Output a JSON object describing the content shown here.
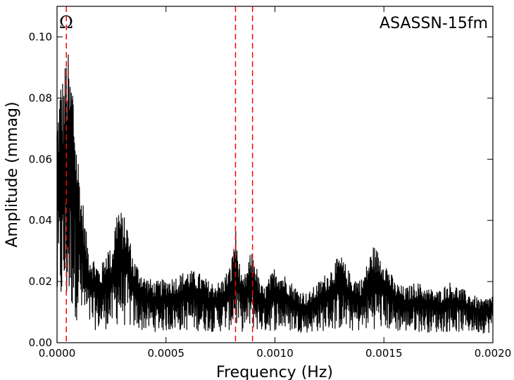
{
  "chart_data": {
    "type": "line",
    "title": "",
    "xlabel": "Frequency (Hz)",
    "ylabel": "Amplitude (mmag)",
    "annotation": "ASASSN-15fm",
    "marker_label": "Ω",
    "xlim": [
      0.0,
      0.002
    ],
    "ylim": [
      0.0,
      0.11
    ],
    "x_ticks": [
      0.0,
      0.0005,
      0.001,
      0.0015,
      0.002
    ],
    "x_tick_labels": [
      "0.0000",
      "0.0005",
      "0.0010",
      "0.0015",
      "0.0020"
    ],
    "y_ticks": [
      0.0,
      0.02,
      0.04,
      0.06,
      0.08,
      0.1
    ],
    "y_tick_labels": [
      "0.00",
      "0.02",
      "0.04",
      "0.06",
      "0.08",
      "0.10"
    ],
    "grid": false,
    "vertical_lines": [
      {
        "x": 4.27e-05,
        "color": "#ff0000",
        "style": "dashed"
      },
      {
        "x": 0.000819,
        "color": "#ff0000",
        "style": "dashed"
      },
      {
        "x": 0.000897,
        "color": "#ff0000",
        "style": "dashed"
      }
    ],
    "series": [
      {
        "color": "#000000",
        "envelope": {
          "x": [
            0.0,
            1e-05,
            2e-05,
            3e-05,
            4e-05,
            5e-05,
            6e-05,
            7e-05,
            8e-05,
            9e-05,
            0.0001,
            0.00011,
            0.00012,
            0.00013,
            0.00014,
            0.00015,
            0.00017,
            0.0002,
            0.00023,
            0.00025,
            0.00027,
            0.00028,
            0.0003,
            0.00032,
            0.00035,
            0.0004,
            0.00045,
            0.0005,
            0.00055,
            0.0006,
            0.00065,
            0.0007,
            0.00075,
            0.0008,
            0.00081,
            0.00082,
            0.00083,
            0.00085,
            0.00087,
            0.00089,
            0.0009,
            0.00091,
            0.00093,
            0.00095,
            0.001,
            0.00105,
            0.0011,
            0.00115,
            0.0012,
            0.00125,
            0.0013,
            0.00135,
            0.0014,
            0.00145,
            0.0015,
            0.00155,
            0.0016,
            0.00165,
            0.0017,
            0.00175,
            0.0018,
            0.00185,
            0.0019,
            0.00195,
            0.002
          ],
          "y": [
            0.075,
            0.082,
            0.09,
            0.086,
            0.094,
            0.096,
            0.088,
            0.09,
            0.078,
            0.066,
            0.06,
            0.05,
            0.046,
            0.038,
            0.034,
            0.03,
            0.028,
            0.024,
            0.032,
            0.03,
            0.042,
            0.046,
            0.042,
            0.04,
            0.028,
            0.022,
            0.02,
            0.021,
            0.022,
            0.024,
            0.023,
            0.02,
            0.02,
            0.026,
            0.034,
            0.037,
            0.03,
            0.02,
            0.024,
            0.03,
            0.029,
            0.027,
            0.02,
            0.018,
            0.025,
            0.022,
            0.018,
            0.016,
            0.02,
            0.024,
            0.029,
            0.022,
            0.021,
            0.032,
            0.028,
            0.02,
            0.018,
            0.02,
            0.018,
            0.017,
            0.02,
            0.018,
            0.016,
            0.014,
            0.016
          ]
        }
      }
    ]
  }
}
